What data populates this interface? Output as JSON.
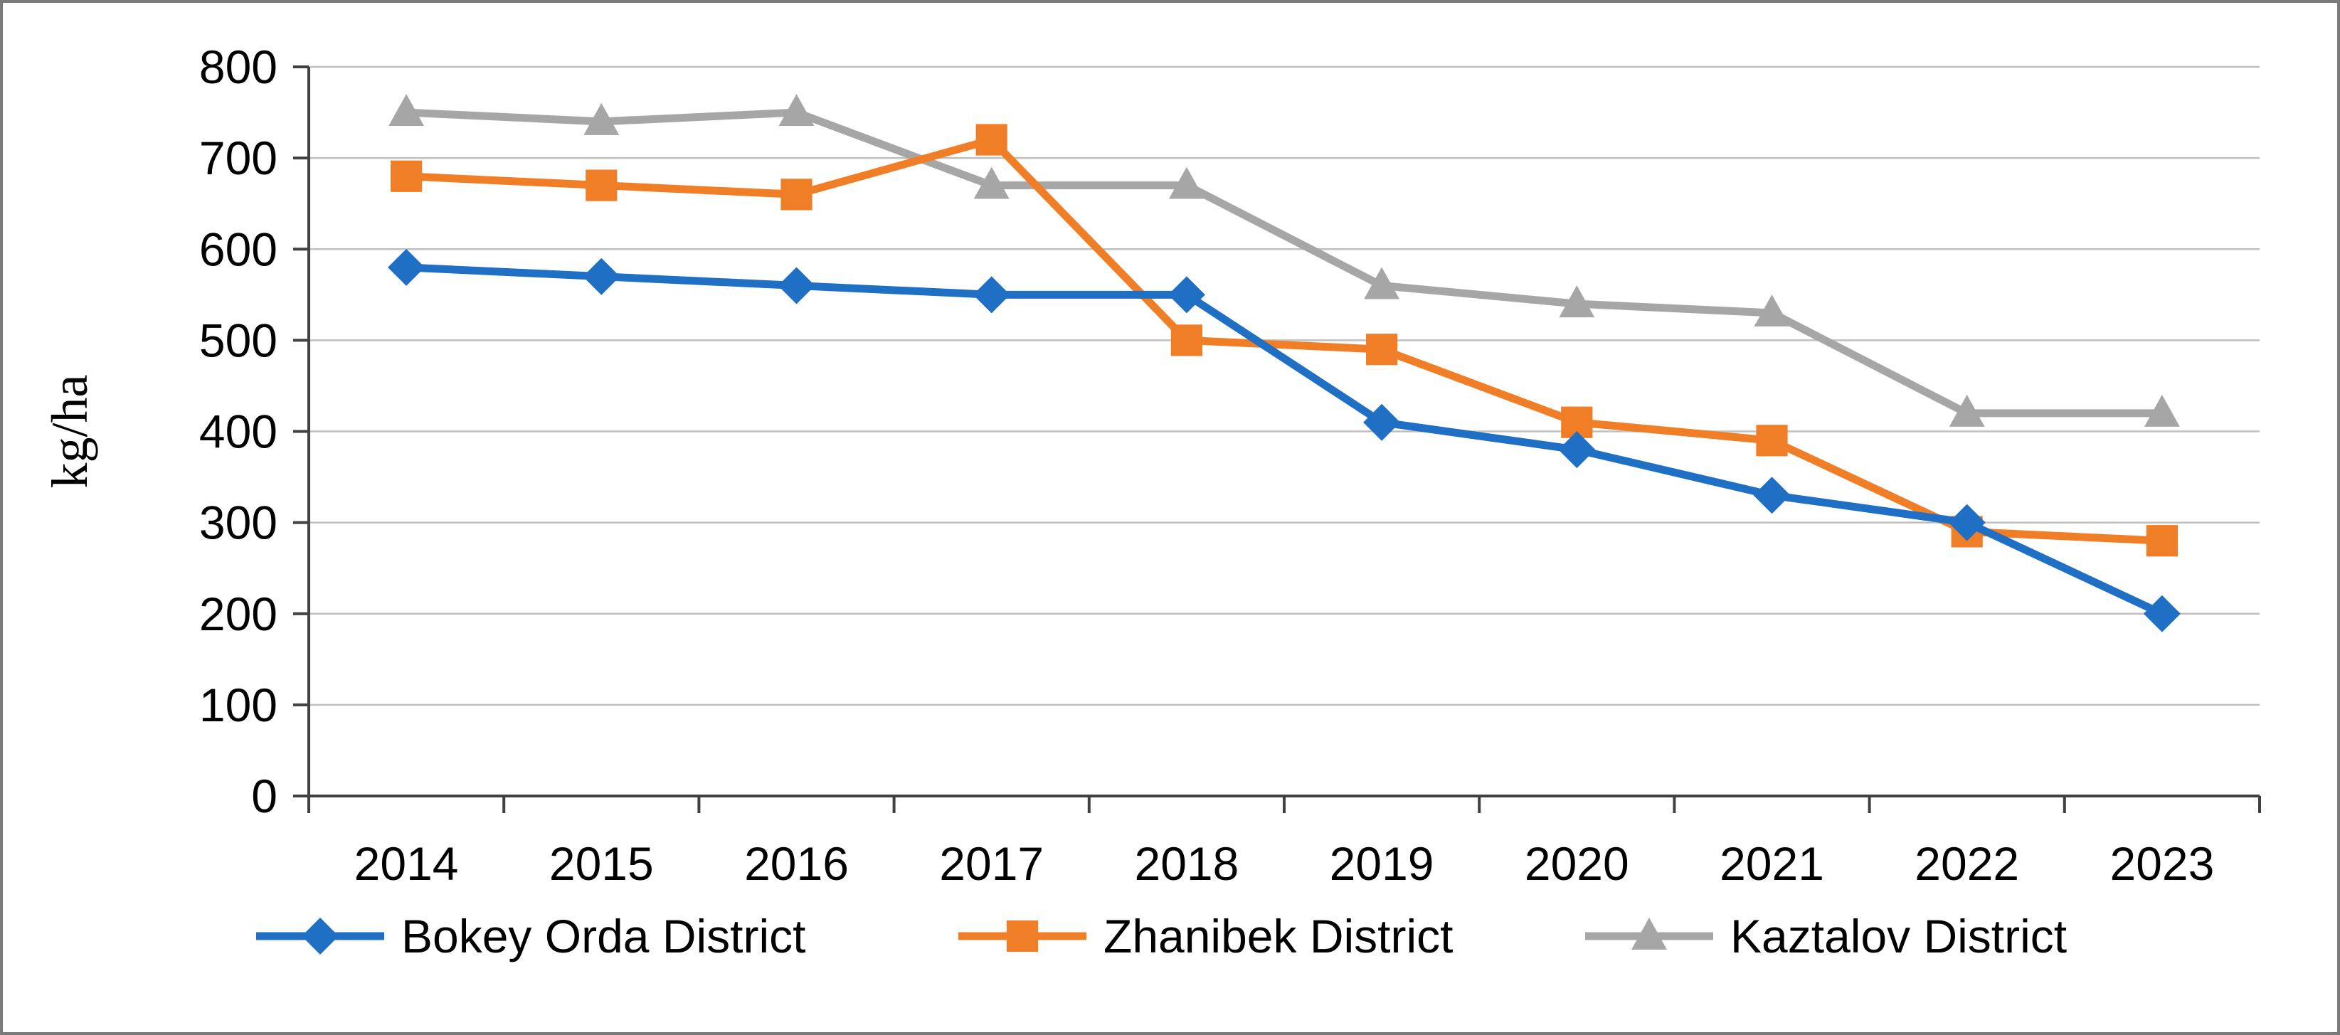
{
  "figure": {
    "background": "#FFFFFF",
    "border_color": "#7A7A7A"
  },
  "chart_data": {
    "type": "line",
    "title": "",
    "xlabel": "",
    "ylabel": "kg/ha",
    "ylim": [
      0,
      800
    ],
    "ytick_step": 100,
    "grid": true,
    "legend_position": "bottom",
    "axis_color": "#404040",
    "grid_color": "#BFBFBF",
    "text_color": "#000000",
    "categories": [
      "2014",
      "2015",
      "2016",
      "2017",
      "2018",
      "2019",
      "2020",
      "2021",
      "2022",
      "2023"
    ],
    "series": [
      {
        "name": "Bokey Orda District",
        "marker": "diamond",
        "color": "#1F6FC5",
        "values": [
          580,
          570,
          560,
          550,
          550,
          410,
          380,
          330,
          300,
          200
        ]
      },
      {
        "name": "Zhanibek District",
        "marker": "square",
        "color": "#F07E26",
        "values": [
          680,
          670,
          660,
          720,
          500,
          490,
          410,
          390,
          290,
          280
        ]
      },
      {
        "name": "Kaztalov District",
        "marker": "triangle",
        "color": "#A6A6A6",
        "values": [
          750,
          740,
          750,
          670,
          670,
          560,
          540,
          530,
          420,
          420
        ]
      }
    ]
  }
}
